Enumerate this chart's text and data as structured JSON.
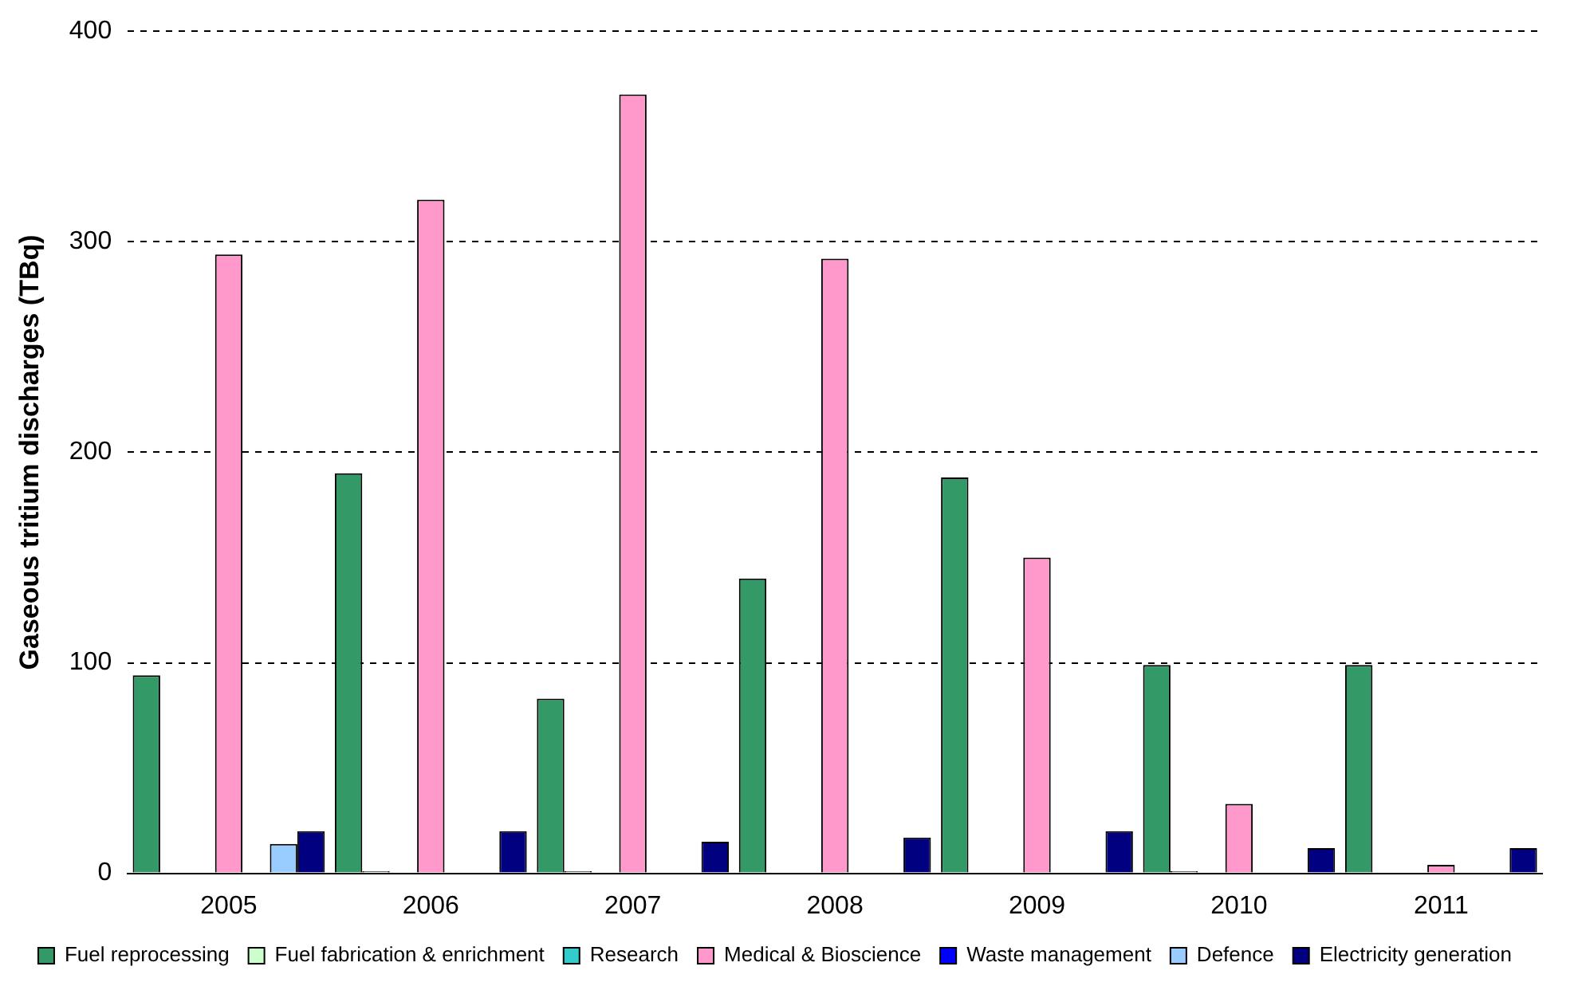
{
  "chart_data": {
    "type": "bar",
    "ylabel": "Gaseous tritium discharges (TBq)",
    "categories": [
      "2005",
      "2006",
      "2007",
      "2008",
      "2009",
      "2010",
      "2011"
    ],
    "series": [
      {
        "name": "Fuel reprocessing",
        "color": "#339966",
        "values": [
          94,
          190,
          83,
          140,
          188,
          99,
          99
        ]
      },
      {
        "name": "Fuel fabrication & enrichment",
        "color": "#ccffcc",
        "values": [
          0,
          1,
          1,
          0,
          0,
          1,
          0
        ]
      },
      {
        "name": "Research",
        "color": "#33cccc",
        "values": [
          0,
          0,
          0,
          0,
          0,
          0,
          0
        ]
      },
      {
        "name": "Medical & Bioscience",
        "color": "#ff99cc",
        "values": [
          294,
          320,
          370,
          292,
          150,
          33,
          4
        ]
      },
      {
        "name": "Waste management",
        "color": "#0000ff",
        "values": [
          0,
          null,
          0,
          0,
          0,
          0,
          0
        ]
      },
      {
        "name": "Defence",
        "color": "#99ccff",
        "values": [
          14,
          0,
          0,
          0,
          0,
          0,
          0
        ]
      },
      {
        "name": "Electricity generation",
        "color": "#000080",
        "values": [
          20,
          20,
          15,
          17,
          20,
          12,
          12
        ]
      }
    ],
    "ylim": [
      0,
      400
    ],
    "yticks": [
      0,
      100,
      200,
      300,
      400
    ],
    "grid": "y",
    "legend": "bottom"
  }
}
